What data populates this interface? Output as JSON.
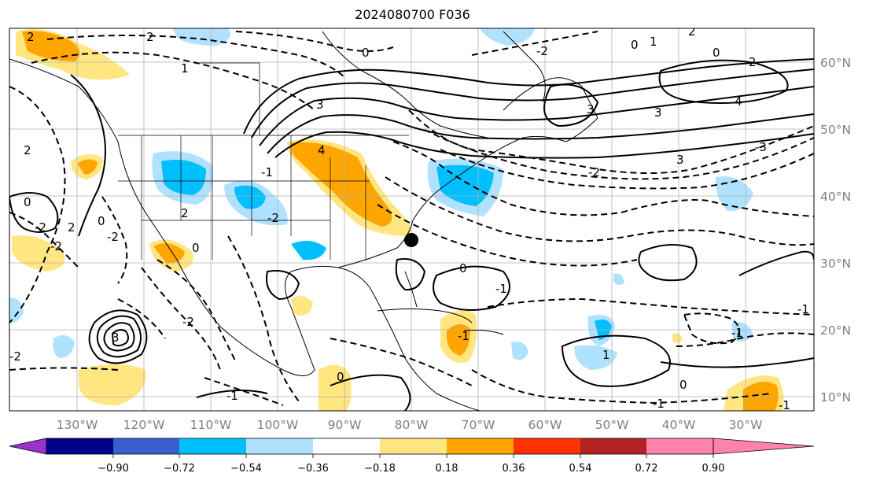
{
  "title": "2024080700 F036",
  "map": {
    "lon_ticks": [
      "130°W",
      "120°W",
      "110°W",
      "100°W",
      "90°W",
      "80°W",
      "70°W",
      "60°W",
      "50°W",
      "40°W",
      "30°W"
    ],
    "lat_ticks": [
      "60°N",
      "50°N",
      "40°N",
      "30°N",
      "20°N",
      "10°N"
    ],
    "lon_range": [
      -137,
      -16
    ],
    "lat_range": [
      8,
      66
    ],
    "gridlines": true,
    "marker": "black dot near Charleston, SC"
  },
  "contour_labels": [
    "2",
    "2",
    "0",
    "-2",
    "0",
    "2",
    "3",
    "1",
    "0",
    "1",
    "3",
    "2",
    "4",
    "3",
    "2",
    "-3",
    "4",
    "-1",
    "-2",
    "3",
    "2",
    "-2",
    "0",
    "-2",
    "0",
    "-2",
    "2",
    "-2",
    "0",
    "-2",
    "3",
    "-1",
    "-1",
    "0",
    "-1",
    "1",
    "-1",
    "-2",
    "-1",
    "0",
    "-1",
    "-1",
    "0"
  ],
  "colorbar": {
    "ticks": [
      "−0.90",
      "−0.72",
      "−0.54",
      "−0.36",
      "−0.18",
      "0.18",
      "0.36",
      "0.54",
      "0.72",
      "0.90"
    ],
    "colors": [
      "#9a32cd",
      "#00008b",
      "#3a5fcd",
      "#00bfff",
      "#b0e2ff",
      "#ffffff",
      "#ffe680",
      "#ffa500",
      "#ff3300",
      "#b22222",
      "#ff82ab"
    ],
    "extend": "both"
  }
}
